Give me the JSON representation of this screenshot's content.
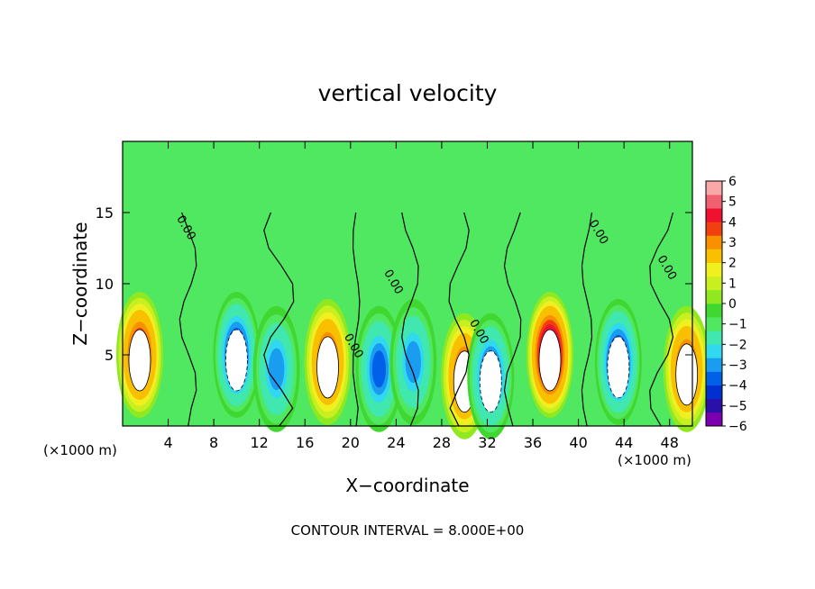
{
  "chart_data": {
    "type": "heatmap",
    "title": "vertical velocity",
    "xlabel": "X−coordinate",
    "ylabel": "Z−coordinate",
    "xunit_left": "(×1000 m)",
    "xunit_right": "(×1000 m)",
    "footer": "CONTOUR INTERVAL = 8.000E+00",
    "xlim": [
      0,
      50
    ],
    "ylim": [
      0,
      20
    ],
    "x_ticks": [
      4,
      8,
      12,
      16,
      20,
      24,
      28,
      32,
      36,
      40,
      44,
      48
    ],
    "x_tick_labels": [
      "4",
      "8",
      "12",
      "16",
      "20",
      "24",
      "28",
      "32",
      "36",
      "40",
      "44",
      "48"
    ],
    "y_ticks": [
      5,
      10,
      15
    ],
    "y_tick_labels": [
      "5",
      "10",
      "15"
    ],
    "colorbar": {
      "min": -6,
      "max": 6,
      "tick_labels": [
        "6",
        "5",
        "4",
        "3",
        "2",
        "1",
        "0",
        "−1",
        "−2",
        "−3",
        "−4",
        "−5",
        "−6"
      ],
      "colors": [
        "#7a00b0",
        "#2a10a8",
        "#0030d0",
        "#0060e8",
        "#1a9cf0",
        "#30d8f0",
        "#40e8b0",
        "#50e860",
        "#40d830",
        "#90e820",
        "#c8f020",
        "#f0f020",
        "#f8c000",
        "#f89000",
        "#f04010",
        "#f01030",
        "#f06070",
        "#f8a8a8"
      ]
    },
    "contour_labels": [
      "0.00",
      "0.00",
      "0.00",
      "0.00",
      "0.00",
      "0.00"
    ],
    "cells": [
      {
        "x": 1.5,
        "z": 5,
        "w": 4.5
      },
      {
        "x": 10,
        "z": 5,
        "w": -4.5
      },
      {
        "x": 13.5,
        "z": 4,
        "w": -3
      },
      {
        "x": 18,
        "z": 4.5,
        "w": 4
      },
      {
        "x": 22.5,
        "z": 4,
        "w": -3.5
      },
      {
        "x": 25.5,
        "z": 4.5,
        "w": -3
      },
      {
        "x": 30,
        "z": 3.5,
        "w": 4
      },
      {
        "x": 32.3,
        "z": 3.5,
        "w": -4
      },
      {
        "x": 37.5,
        "z": 5,
        "w": 6
      },
      {
        "x": 43.5,
        "z": 4.5,
        "w": -4.5
      },
      {
        "x": 49.5,
        "z": 4,
        "w": 4
      }
    ]
  }
}
